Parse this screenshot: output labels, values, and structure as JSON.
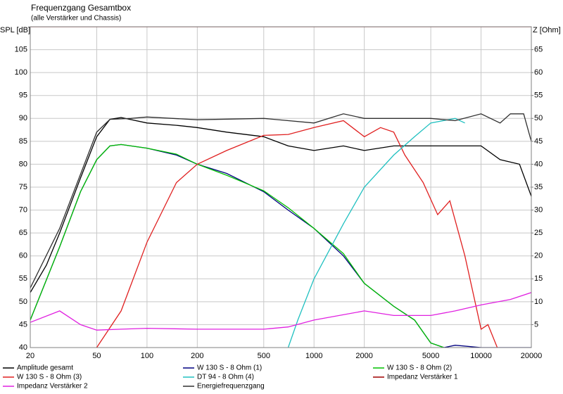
{
  "chart_data": {
    "type": "line",
    "title": "Frequenzgang Gesamtbox",
    "subtitle": "(alle Verstärker und Chassis)",
    "y_label": "SPL [dB]",
    "y2_label": "Z [Ohm]",
    "x_log": true,
    "grid": true,
    "legend": "bottom",
    "xlim": [
      20,
      20000
    ],
    "xticks": [
      20,
      50,
      100,
      200,
      500,
      1000,
      2000,
      5000,
      10000,
      20000
    ],
    "ylim": [
      40,
      110
    ],
    "yticks": [
      40,
      45,
      50,
      55,
      60,
      65,
      70,
      75,
      80,
      85,
      90,
      95,
      100,
      105
    ],
    "y2lim": [
      0,
      70
    ],
    "y2ticks": [
      5,
      10,
      15,
      20,
      25,
      30,
      35,
      40,
      45,
      50,
      55,
      60,
      65
    ],
    "series": [
      {
        "name": "Amplitude gesamt",
        "color": "#000000",
        "x": [
          20,
          25,
          30,
          40,
          50,
          60,
          70,
          100,
          150,
          200,
          300,
          500,
          700,
          1000,
          1500,
          2000,
          3000,
          5000,
          7000,
          10000,
          13000,
          17000,
          20000
        ],
        "values": [
          52,
          58,
          65,
          77,
          86,
          89.8,
          90.2,
          89,
          88.5,
          88,
          87,
          86,
          84,
          83,
          84,
          83,
          84,
          84,
          84,
          84,
          81,
          80,
          73
        ]
      },
      {
        "name": "W 130 S - 8 Ohm (1)",
        "color": "#000080",
        "x": [
          20,
          30,
          40,
          50,
          60,
          70,
          100,
          150,
          200,
          300,
          500,
          700,
          1000,
          1500,
          2000,
          3000,
          4000,
          5000,
          6000,
          7000,
          10000,
          20000
        ],
        "values": [
          46,
          62,
          74,
          81,
          84,
          84.3,
          83.5,
          82,
          80,
          78,
          74,
          70,
          66,
          60,
          54,
          49,
          46,
          41,
          40,
          40.5,
          40,
          40
        ]
      },
      {
        "name": "W 130 S - 8 Ohm (2)",
        "color": "#00c000",
        "x": [
          20,
          30,
          40,
          50,
          60,
          70,
          100,
          150,
          200,
          300,
          500,
          700,
          1000,
          1500,
          2000,
          3000,
          4000,
          5000,
          6000
        ],
        "values": [
          46,
          62,
          74,
          81,
          84,
          84.3,
          83.5,
          82.2,
          80,
          77.6,
          74.2,
          70.5,
          66,
          60.5,
          54,
          49,
          46,
          41,
          40
        ]
      },
      {
        "name": "W 130 S - 8 Ohm (3)",
        "color": "#e02020",
        "x": [
          50,
          70,
          100,
          150,
          200,
          300,
          500,
          700,
          1000,
          1500,
          2000,
          2500,
          3000,
          3500,
          4500,
          5500,
          6500,
          8000,
          10000,
          11000,
          12500
        ],
        "values": [
          40,
          48,
          63,
          76,
          80,
          83,
          86.3,
          86.5,
          88,
          89.5,
          86,
          88,
          87,
          82,
          76,
          69,
          72,
          60,
          44,
          45,
          40
        ]
      },
      {
        "name": "DT 94 - 8 Ohm (4)",
        "color": "#20c0c0",
        "x": [
          700,
          800,
          1000,
          1500,
          2000,
          3000,
          4000,
          5000,
          7000,
          8000
        ],
        "values": [
          40,
          46,
          55,
          67,
          75,
          82,
          86,
          89,
          90,
          89
        ]
      },
      {
        "name": "Impedanz Verstärker 1",
        "color": "#a00000",
        "axis": "y2",
        "x": [
          20,
          20000
        ],
        "values": [
          70,
          70
        ]
      },
      {
        "name": "Impedanz Verstärker 2",
        "color": "#e020e0",
        "axis": "y2",
        "x": [
          20,
          30,
          40,
          50,
          70,
          100,
          200,
          500,
          700,
          1000,
          2000,
          3000,
          5000,
          7000,
          10000,
          15000,
          20000
        ],
        "values": [
          5.5,
          8,
          5,
          3.8,
          4,
          4.2,
          4,
          4,
          4.5,
          6,
          8,
          7,
          7,
          8,
          9.3,
          10.5,
          12
        ]
      },
      {
        "name": "Energiefrequenzgang",
        "color": "#303030",
        "x": [
          20,
          30,
          50,
          60,
          80,
          100,
          200,
          500,
          1000,
          1500,
          2000,
          3000,
          5000,
          7000,
          10000,
          13000,
          15000,
          18000,
          20000
        ],
        "values": [
          53,
          66,
          87,
          89.8,
          90,
          90.3,
          89.7,
          90,
          89,
          91,
          90,
          90,
          90,
          89.5,
          91,
          89,
          91,
          91,
          85
        ]
      }
    ]
  }
}
